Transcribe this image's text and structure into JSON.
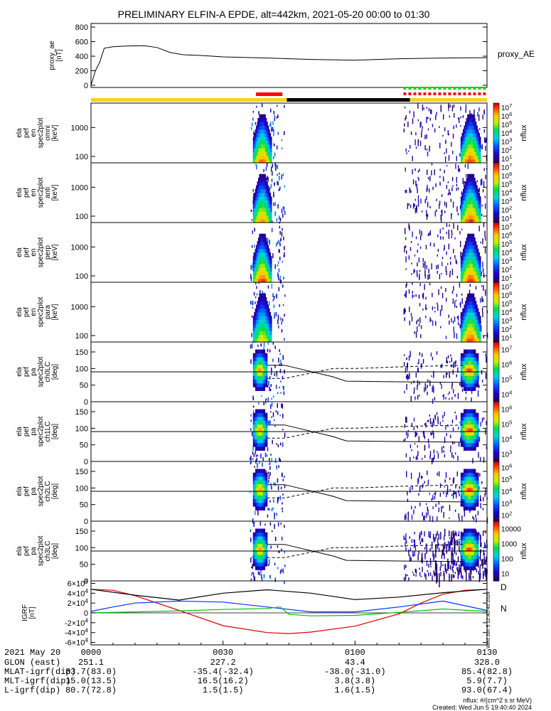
{
  "title": "PRELIMINARY ELFIN-A EPDE, alt=442km, 2021-05-20 00:00 to 01:30",
  "colors": {
    "bar_yellow": "#ffd21a",
    "bar_black": "#000000",
    "bar_red": "#ff0000",
    "bar_green": "#00dd00",
    "bx": "#0033ff",
    "by": "#00c000",
    "bz": "#000000",
    "bmag_neg": "#dd0000"
  },
  "status_bars": {
    "description": "",
    "segments_minutes": [
      {
        "color": "yellow",
        "start": 0,
        "end": 44.5
      },
      {
        "color": "black",
        "start": 44.5,
        "end": 72.5
      },
      {
        "color": "yellow",
        "start": 72.5,
        "end": 90
      }
    ],
    "red_solid": [
      37.5,
      43.5
    ],
    "red_dashed": [
      71,
      89.5
    ],
    "green_dashed": [
      71,
      89.5
    ]
  },
  "chart_data": [
    {
      "type": "line",
      "ylabel": "proxy_ae\n[nT]",
      "ylim": [
        -30,
        850
      ],
      "yticks": [
        0,
        200,
        400,
        600,
        800
      ],
      "legend": "proxy_AE",
      "x_minutes": [
        0,
        1,
        2,
        3,
        5,
        8,
        12,
        15,
        18,
        21,
        25,
        30,
        40,
        50,
        60,
        70,
        80,
        90
      ],
      "values": [
        0,
        200,
        320,
        510,
        530,
        540,
        545,
        520,
        450,
        420,
        410,
        390,
        375,
        355,
        345,
        365,
        375,
        380
      ]
    },
    {
      "type": "heatmap",
      "ylabel": "ela\npef\nen\nspec2plot\nomni\n[keV]",
      "yscale": "log",
      "ylim": [
        60,
        7000
      ],
      "yticks": [
        100,
        1000
      ],
      "colorbar": {
        "label": "nflux",
        "scale": "log",
        "ticks": [
          "10^1",
          "10^2",
          "10^3",
          "10^4",
          "10^5",
          "10^6",
          "10^7"
        ]
      }
    },
    {
      "type": "heatmap",
      "ylabel": "ela\npef\nen\nspec2plot\nanti\n[keV]",
      "yscale": "log",
      "ylim": [
        60,
        7000
      ],
      "yticks": [
        100,
        1000
      ],
      "colorbar": {
        "label": "nflux",
        "scale": "log",
        "ticks": [
          "10^1",
          "10^2",
          "10^3",
          "10^4",
          "10^5",
          "10^6",
          "10^7"
        ]
      }
    },
    {
      "type": "heatmap",
      "ylabel": "ela\npef\nen\nspec2plot\nperp\n[keV]",
      "yscale": "log",
      "ylim": [
        60,
        7000
      ],
      "yticks": [
        100,
        1000
      ],
      "colorbar": {
        "label": "nflux",
        "scale": "log",
        "ticks": [
          "10^1",
          "10^2",
          "10^3",
          "10^4",
          "10^5",
          "10^6",
          "10^7"
        ]
      }
    },
    {
      "type": "heatmap",
      "ylabel": "ela\npef\nen\nspec2plot\npara\n[keV]",
      "yscale": "log",
      "ylim": [
        60,
        7000
      ],
      "yticks": [
        100,
        1000
      ],
      "colorbar": {
        "label": "nflux",
        "scale": "log",
        "ticks": [
          "10^1",
          "10^2",
          "10^3",
          "10^4",
          "10^5",
          "10^6",
          "10^7"
        ]
      }
    },
    {
      "type": "heatmap",
      "ylabel": "ela\npef\npa\nspec2plot\nch0LC\n[deg]",
      "ylim": [
        0,
        180
      ],
      "yticks": [
        0,
        50,
        100,
        150
      ],
      "colorbar": {
        "label": "nflux",
        "scale": "log",
        "ticks": [
          "10^4",
          "10^5",
          "10^6",
          "10^7"
        ]
      }
    },
    {
      "type": "heatmap",
      "ylabel": "ela\npef\npa\nspec2plot\nch1LC\n[deg]",
      "ylim": [
        0,
        180
      ],
      "yticks": [
        0,
        50,
        100,
        150
      ],
      "colorbar": {
        "label": "nflux",
        "scale": "log",
        "ticks": [
          "10^3",
          "10^4",
          "10^5",
          "10^6"
        ]
      }
    },
    {
      "type": "heatmap",
      "ylabel": "ela\npef\npa\nspec2plot\nch2LC\n[deg]",
      "ylim": [
        0,
        180
      ],
      "yticks": [
        0,
        50,
        100,
        150
      ],
      "colorbar": {
        "label": "nflux",
        "scale": "log",
        "ticks": [
          "10^2",
          "10^3",
          "10^4",
          "10^5",
          "10^6"
        ]
      }
    },
    {
      "type": "heatmap",
      "ylabel": "ela\npef\npa\nspec2plot\nch3LC\n[deg]",
      "ylim": [
        0,
        180
      ],
      "yticks": [
        0,
        50,
        100,
        150
      ],
      "colorbar": {
        "label": "nflux",
        "scale": "log",
        "ticks": [
          "10",
          "100",
          "1000",
          "10000"
        ]
      }
    },
    {
      "type": "line",
      "ylabel": "IGRF\n[nT]",
      "ylim": [
        -65000,
        65000
      ],
      "yticks": [
        "-6×10^4",
        "-4×10^4",
        "-2×10^4",
        "0",
        "2×10^4",
        "4×10^4",
        "6×10^4"
      ],
      "ytick_values": [
        -60000,
        -40000,
        -20000,
        0,
        20000,
        40000,
        60000
      ],
      "series_labels": [
        "D",
        "N"
      ],
      "series": [
        {
          "color": "red",
          "x_minutes": [
            0,
            5,
            10,
            20,
            30,
            40,
            45,
            50,
            60,
            70,
            75,
            80,
            85,
            90
          ],
          "values": [
            48000,
            46000,
            35000,
            5000,
            -26000,
            -40000,
            -42000,
            -39000,
            -27000,
            -2000,
            20000,
            38000,
            46000,
            48000
          ]
        },
        {
          "color": "black",
          "x_minutes": [
            0,
            10,
            20,
            30,
            40,
            50,
            60,
            70,
            80,
            90
          ],
          "values": [
            48000,
            36000,
            26000,
            40000,
            47000,
            40000,
            27000,
            32000,
            41000,
            48000
          ]
        },
        {
          "color": "blue",
          "x_minutes": [
            0,
            5,
            10,
            20,
            30,
            40,
            50,
            60,
            70,
            80,
            90
          ],
          "values": [
            3000,
            12000,
            20000,
            24000,
            22000,
            12000,
            2000,
            2000,
            12000,
            24000,
            5000
          ]
        },
        {
          "color": "green",
          "x_minutes": [
            0,
            10,
            20,
            30,
            40,
            43,
            45,
            50,
            60,
            70,
            80,
            90
          ],
          "values": [
            100,
            2000,
            4000,
            7000,
            9000,
            12000,
            -3000,
            -6000,
            -5000,
            1000,
            8000,
            3000
          ]
        }
      ]
    }
  ],
  "xaxis": {
    "range_minutes": [
      0,
      90
    ],
    "tick_labels": [
      "0000",
      "0030",
      "0100",
      "0130"
    ],
    "tick_minutes": [
      0,
      30,
      60,
      90
    ]
  },
  "footer": {
    "rows": [
      {
        "label": "2021 May 20",
        "values": [
          "0000",
          "0030",
          "0100",
          "0130"
        ]
      },
      {
        "label": "GLON (east)",
        "values": [
          "251.1",
          "227.2",
          "43.4",
          "328.0"
        ]
      },
      {
        "label": "MLAT-igrf(dip)",
        "values": [
          "83.7(83.0)",
          "-35.4(-32.4)",
          "-38.0(-31.0)",
          "85.4(82.8)"
        ]
      },
      {
        "label": "MLT-igrf(dip)",
        "values": [
          "15.0(13.5)",
          "16.5(16.2)",
          "3.8(3.8)",
          "5.9(7.7)"
        ]
      },
      {
        "label": "L-igrf(dip)",
        "values": [
          "80.7(72.8)",
          "1.5(1.5)",
          "1.6(1.5)",
          "93.0(67.4)"
        ]
      }
    ],
    "units_note": "nflux: #/(cm^2 s sr MeV)",
    "created": "Created: Wed Jun  5 19:40:40 2024",
    "side_stamp": "Wed Jun  5 12:40:40 2024"
  }
}
